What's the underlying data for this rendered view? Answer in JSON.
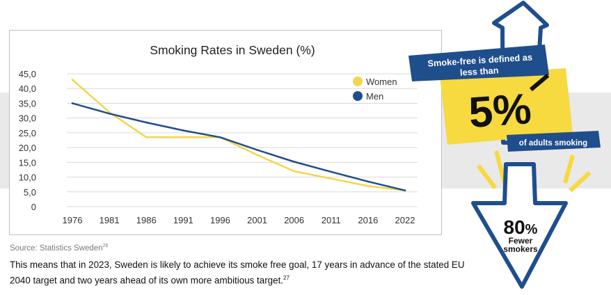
{
  "chart_data": {
    "type": "line",
    "title": "Smoking Rates in Sweden (%)",
    "xlabel": "",
    "ylabel": "",
    "x": [
      1976,
      1981,
      1986,
      1991,
      1996,
      2001,
      2006,
      2011,
      2016,
      2022
    ],
    "x_tick_labels": [
      "1976",
      "1981",
      "1986",
      "1991",
      "1996",
      "2001",
      "2006",
      "2011",
      "2016",
      "2022"
    ],
    "y_tick_labels": [
      "45,0",
      "40,0",
      "35,0",
      "30,0",
      "25,0",
      "20,0",
      "15,0",
      "10,0",
      "5,0",
      "0"
    ],
    "ylim": [
      0,
      45
    ],
    "grid": true,
    "legend_position": "top-right",
    "series": [
      {
        "name": "Women",
        "color": "#f2d64b",
        "values": [
          43,
          32,
          23.5,
          23.5,
          23.5,
          17.5,
          12,
          9.5,
          7,
          5.5
        ]
      },
      {
        "name": "Men",
        "color": "#1f4e8c",
        "values": [
          35,
          31.5,
          28.5,
          25.8,
          23.5,
          19.2,
          15.2,
          11.8,
          8.5,
          5.5
        ]
      }
    ]
  },
  "source_label": "Source: Statistics Sweden",
  "source_ref": "26",
  "body_text": "This means that in 2023, Sweden is likely to achieve its smoke free goal, 17 years in advance of the stated EU 2040 target and two years ahead of its own more ambitious target.",
  "body_ref": "27",
  "infographic": {
    "banner_line1": "Smoke-free is defined as",
    "banner_line2": "less than",
    "big_value": "5%",
    "caption": "of adults smoking",
    "arrow_value": "80",
    "arrow_unit": "%",
    "arrow_line1": "Fewer",
    "arrow_line2": "smokers",
    "navy": "#1f4e8c",
    "yellow": "#f7d940"
  }
}
